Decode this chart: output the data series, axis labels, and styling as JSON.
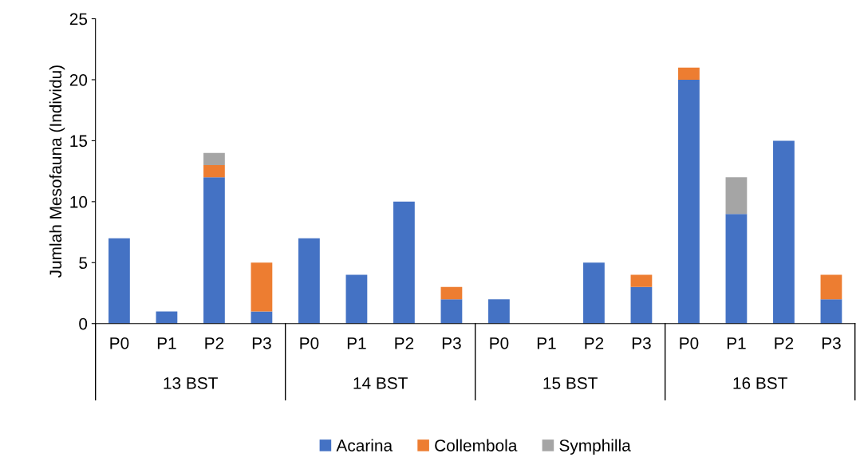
{
  "chart_data": {
    "type": "bar",
    "stacked": true,
    "ylabel": "Jumlah Mesofauna (Individu)",
    "categories": [
      "P0",
      "P1",
      "P2",
      "P3",
      "P0",
      "P1",
      "P2",
      "P3",
      "P0",
      "P1",
      "P2",
      "P3",
      "P0",
      "P1",
      "P2",
      "P3"
    ],
    "annotations": [
      "13 BST",
      "14 BST",
      "15 BST",
      "16 BST"
    ],
    "series": [
      {
        "name": "Acarina",
        "color": "#4472c4",
        "values": [
          7,
          1,
          12,
          1,
          7,
          4,
          10,
          2,
          2,
          0,
          5,
          3,
          20,
          9,
          15,
          2
        ]
      },
      {
        "name": "Collembola",
        "color": "#ed7d31",
        "values": [
          0,
          0,
          1,
          4,
          0,
          0,
          0,
          1,
          0,
          0,
          0,
          1,
          1,
          0,
          0,
          2
        ]
      },
      {
        "name": "Symphilla",
        "color": "#a5a5a5",
        "values": [
          0,
          0,
          1,
          0,
          0,
          0,
          0,
          0,
          0,
          0,
          0,
          0,
          0,
          3,
          0,
          0
        ]
      }
    ],
    "ylim": [
      0,
      25
    ],
    "yticks": [
      0,
      5,
      10,
      15,
      20,
      25
    ],
    "grid": false,
    "legend": "bottom"
  }
}
